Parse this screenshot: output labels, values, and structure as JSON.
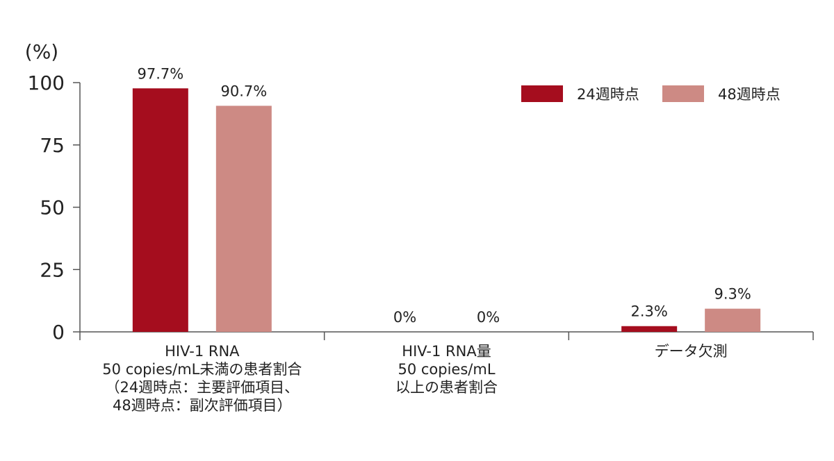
{
  "chart_data": {
    "type": "bar",
    "title": "",
    "xlabel": "",
    "ylabel": "(%)",
    "ylim": [
      0,
      100
    ],
    "yticks": [
      0,
      25,
      50,
      75,
      100
    ],
    "grid": false,
    "legend_position": "top-right",
    "categories": [
      [
        "HIV-1 RNA",
        "50 copies/mL未満の患者割合",
        "（24週時点：主要評価項目、",
        "48週時点：副次評価項目）"
      ],
      [
        "HIV-1 RNA量",
        "50 copies/mL",
        "以上の患者割合"
      ],
      [
        "データ欠測"
      ]
    ],
    "series": [
      {
        "name": "24週時点",
        "color": "#a50d1e",
        "values": [
          97.7,
          0,
          2.3
        ],
        "labels": [
          "97.7%",
          "0%",
          "2.3%"
        ]
      },
      {
        "name": "48週時点",
        "color": "#cd8a84",
        "values": [
          90.7,
          0,
          9.3
        ],
        "labels": [
          "90.7%",
          "0%",
          "9.3%"
        ]
      }
    ]
  }
}
